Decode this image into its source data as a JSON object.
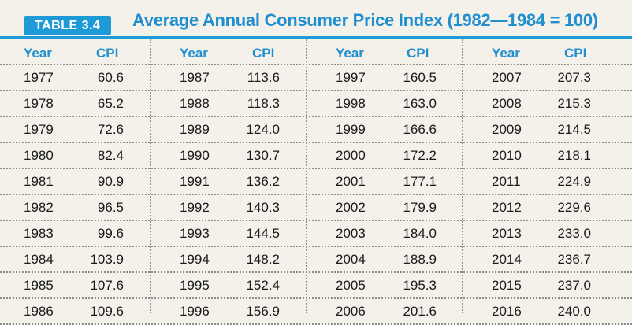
{
  "table": {
    "label": "TABLE 3.4",
    "title": "Average Annual Consumer Price Index (1982—1984 = 100)",
    "header_year": "Year",
    "header_cpi": "CPI",
    "colors": {
      "accent": "#1e9ad6",
      "text": "#1a1a1a",
      "background": "#f4f1eb"
    },
    "groups": [
      {
        "rows": [
          {
            "year": "1977",
            "cpi": "60.6"
          },
          {
            "year": "1978",
            "cpi": "65.2"
          },
          {
            "year": "1979",
            "cpi": "72.6"
          },
          {
            "year": "1980",
            "cpi": "82.4"
          },
          {
            "year": "1981",
            "cpi": "90.9"
          },
          {
            "year": "1982",
            "cpi": "96.5"
          },
          {
            "year": "1983",
            "cpi": "99.6"
          },
          {
            "year": "1984",
            "cpi": "103.9"
          },
          {
            "year": "1985",
            "cpi": "107.6"
          },
          {
            "year": "1986",
            "cpi": "109.6"
          }
        ]
      },
      {
        "rows": [
          {
            "year": "1987",
            "cpi": "113.6"
          },
          {
            "year": "1988",
            "cpi": "118.3"
          },
          {
            "year": "1989",
            "cpi": "124.0"
          },
          {
            "year": "1990",
            "cpi": "130.7"
          },
          {
            "year": "1991",
            "cpi": "136.2"
          },
          {
            "year": "1992",
            "cpi": "140.3"
          },
          {
            "year": "1993",
            "cpi": "144.5"
          },
          {
            "year": "1994",
            "cpi": "148.2"
          },
          {
            "year": "1995",
            "cpi": "152.4"
          },
          {
            "year": "1996",
            "cpi": "156.9"
          }
        ]
      },
      {
        "rows": [
          {
            "year": "1997",
            "cpi": "160.5"
          },
          {
            "year": "1998",
            "cpi": "163.0"
          },
          {
            "year": "1999",
            "cpi": "166.6"
          },
          {
            "year": "2000",
            "cpi": "172.2"
          },
          {
            "year": "2001",
            "cpi": "177.1"
          },
          {
            "year": "2002",
            "cpi": "179.9"
          },
          {
            "year": "2003",
            "cpi": "184.0"
          },
          {
            "year": "2004",
            "cpi": "188.9"
          },
          {
            "year": "2005",
            "cpi": "195.3"
          },
          {
            "year": "2006",
            "cpi": "201.6"
          }
        ]
      },
      {
        "rows": [
          {
            "year": "2007",
            "cpi": "207.3"
          },
          {
            "year": "2008",
            "cpi": "215.3"
          },
          {
            "year": "2009",
            "cpi": "214.5"
          },
          {
            "year": "2010",
            "cpi": "218.1"
          },
          {
            "year": "2011",
            "cpi": "224.9"
          },
          {
            "year": "2012",
            "cpi": "229.6"
          },
          {
            "year": "2013",
            "cpi": "233.0"
          },
          {
            "year": "2014",
            "cpi": "236.7"
          },
          {
            "year": "2015",
            "cpi": "237.0"
          },
          {
            "year": "2016",
            "cpi": "240.0"
          }
        ]
      }
    ]
  }
}
